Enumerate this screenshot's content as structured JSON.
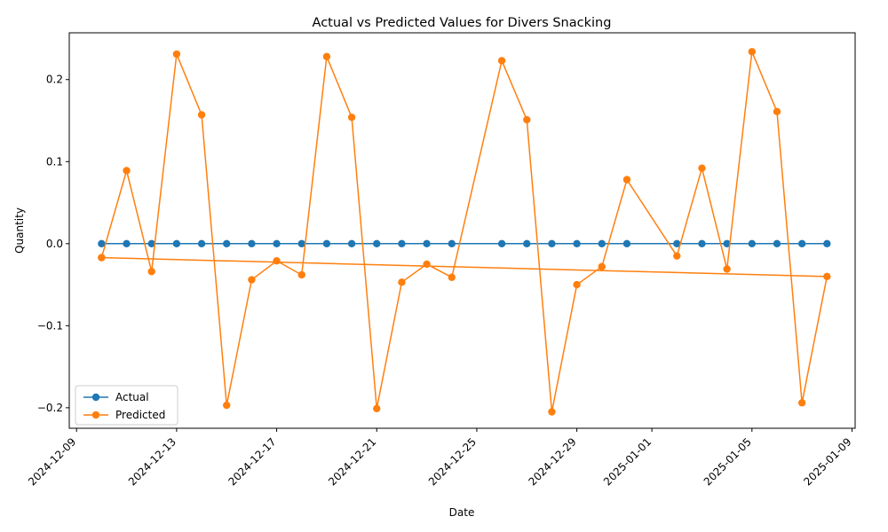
{
  "chart_data": {
    "type": "line",
    "title": "Actual vs Predicted Values for Divers Snacking",
    "xlabel": "Date",
    "ylabel": "Quantity",
    "xlim": [
      "2024-12-08T17:00",
      "2025-01-09T03:00"
    ],
    "ylim": [
      -0.225,
      0.257
    ],
    "x_ticks": [
      "2024-12-09",
      "2024-12-13",
      "2024-12-17",
      "2024-12-21",
      "2024-12-25",
      "2024-12-29",
      "2025-01-01",
      "2025-01-05",
      "2025-01-09"
    ],
    "y_ticks": [
      -0.2,
      -0.1,
      0.0,
      0.1,
      0.2
    ],
    "y_tick_labels": [
      "−0.2",
      "−0.1",
      "0.0",
      "0.1",
      "0.2"
    ],
    "grid": false,
    "legend_position": "lower-left",
    "series": [
      {
        "name": "Actual",
        "color": "#1f77b4",
        "marker": "circle",
        "points": [
          [
            "2024-12-10",
            0
          ],
          [
            "2024-12-11",
            0
          ],
          [
            "2024-12-12",
            0
          ],
          [
            "2024-12-13",
            0
          ],
          [
            "2024-12-14",
            0
          ],
          [
            "2024-12-15",
            0
          ],
          [
            "2024-12-16",
            0
          ],
          [
            "2024-12-17",
            0
          ],
          [
            "2024-12-18",
            0
          ],
          [
            "2024-12-19",
            0
          ],
          [
            "2024-12-20",
            0
          ],
          [
            "2024-12-21",
            0
          ],
          [
            "2024-12-22",
            0
          ],
          [
            "2024-12-23",
            0
          ],
          [
            "2024-12-24",
            0
          ],
          [
            "2024-12-26",
            0
          ],
          [
            "2024-12-27",
            0
          ],
          [
            "2024-12-28",
            0
          ],
          [
            "2024-12-29",
            0
          ],
          [
            "2024-12-30",
            0
          ],
          [
            "2024-12-31",
            0
          ],
          [
            "2025-01-02",
            0
          ],
          [
            "2025-01-03",
            0
          ],
          [
            "2025-01-04",
            0
          ],
          [
            "2025-01-05",
            0
          ],
          [
            "2025-01-06",
            0
          ],
          [
            "2025-01-07",
            0
          ],
          [
            "2025-01-08",
            0
          ]
        ]
      },
      {
        "name": "Predicted",
        "color": "#ff7f0e",
        "marker": "circle",
        "points": [
          [
            "2024-12-10",
            -0.017
          ],
          [
            "2024-12-11",
            0.089
          ],
          [
            "2024-12-12",
            -0.034
          ],
          [
            "2024-12-13",
            0.231
          ],
          [
            "2024-12-14",
            0.157
          ],
          [
            "2024-12-15",
            -0.197
          ],
          [
            "2024-12-16",
            -0.044
          ],
          [
            "2024-12-17",
            -0.021
          ],
          [
            "2024-12-18",
            -0.038
          ],
          [
            "2024-12-19",
            0.228
          ],
          [
            "2024-12-20",
            0.154
          ],
          [
            "2024-12-21",
            -0.201
          ],
          [
            "2024-12-22",
            -0.047
          ],
          [
            "2024-12-23",
            -0.025
          ],
          [
            "2024-12-24",
            -0.041
          ],
          [
            "2024-12-26",
            0.223
          ],
          [
            "2024-12-27",
            0.151
          ],
          [
            "2024-12-28",
            -0.205
          ],
          [
            "2024-12-29",
            -0.05
          ],
          [
            "2024-12-30",
            -0.028
          ],
          [
            "2024-12-31",
            0.078
          ],
          [
            "2025-01-02",
            -0.015
          ],
          [
            "2025-01-03",
            0.092
          ],
          [
            "2025-01-04",
            -0.031
          ],
          [
            "2025-01-05",
            0.234
          ],
          [
            "2025-01-06",
            0.161
          ],
          [
            "2025-01-07",
            -0.194
          ],
          [
            "2025-01-08",
            -0.04
          ],
          [
            "2024-12-10",
            -0.017
          ]
        ]
      }
    ]
  }
}
